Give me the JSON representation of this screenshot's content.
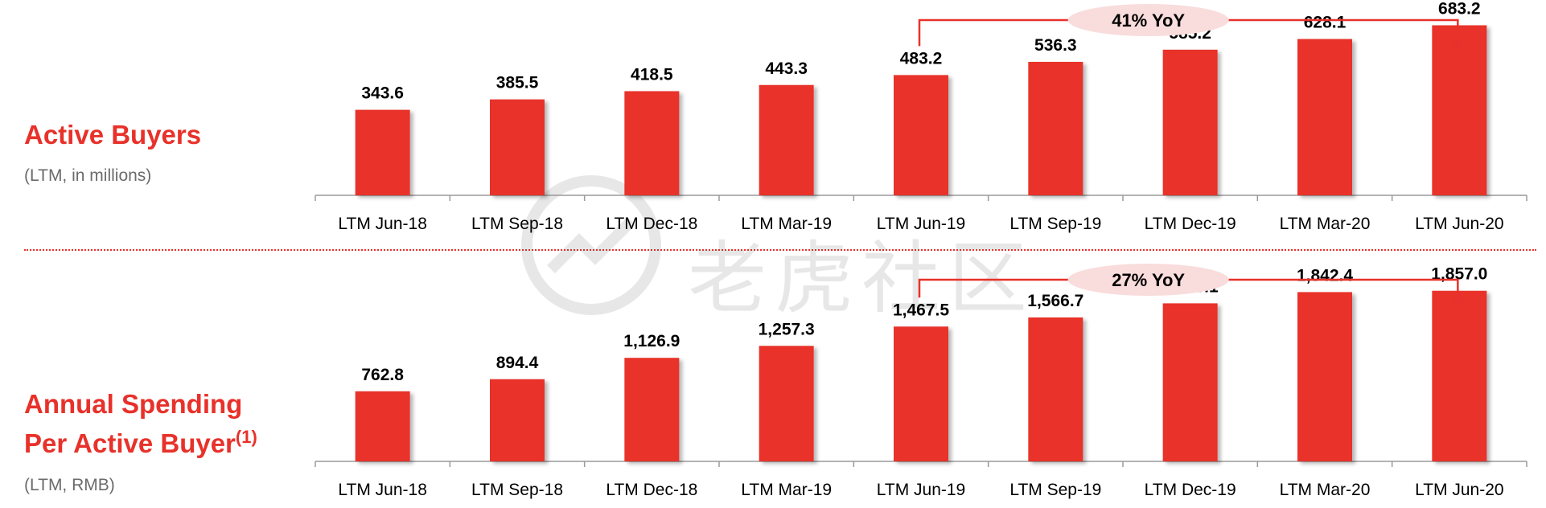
{
  "watermark_text": "老虎社区",
  "colors": {
    "accent": "#e8312a",
    "bar": "#e8312a",
    "text": "#000000",
    "subtitle": "#6b6b6b",
    "yoy_bubble": "#f9dcdc"
  },
  "panels": [
    {
      "title": "Active Buyers",
      "subtitle": "(LTM, in millions)"
    },
    {
      "title_line1": "Annual Spending",
      "title_line2": "Per Active Buyer",
      "title_footnote": "(1)",
      "subtitle": "(LTM, RMB)"
    }
  ],
  "chart_data": [
    {
      "type": "bar",
      "title": "Active Buyers",
      "subtitle": "(LTM, in millions)",
      "categories": [
        "LTM Jun-18",
        "LTM Sep-18",
        "LTM Dec-18",
        "LTM Mar-19",
        "LTM Jun-19",
        "LTM Sep-19",
        "LTM Dec-19",
        "LTM Mar-20",
        "LTM Jun-20"
      ],
      "values": [
        343.6,
        385.5,
        418.5,
        443.3,
        483.2,
        536.3,
        585.2,
        628.1,
        683.2
      ],
      "value_labels": [
        "343.6",
        "385.5",
        "418.5",
        "443.3",
        "483.2",
        "536.3",
        "585.2",
        "628.1",
        "683.2"
      ],
      "ylim": [
        0,
        700
      ],
      "grid": false,
      "annotation": {
        "text": "41% YoY",
        "from": "LTM Jun-19",
        "to": "LTM Jun-20"
      }
    },
    {
      "type": "bar",
      "title": "Annual Spending Per Active Buyer(1)",
      "subtitle": "(LTM, RMB)",
      "categories": [
        "LTM Jun-18",
        "LTM Sep-18",
        "LTM Dec-18",
        "LTM Mar-19",
        "LTM Jun-19",
        "LTM Sep-19",
        "LTM Dec-19",
        "LTM Mar-20",
        "LTM Jun-20"
      ],
      "values": [
        762.8,
        894.4,
        1126.9,
        1257.3,
        1467.5,
        1566.7,
        1720.1,
        1842.4,
        1857.0
      ],
      "value_labels": [
        "762.8",
        "894.4",
        "1,126.9",
        "1,257.3",
        "1,467.5",
        "1,566.7",
        "1,720.1",
        "1,842.4",
        "1,857.0"
      ],
      "ylim": [
        0,
        1900
      ],
      "grid": false,
      "annotation": {
        "text": "27% YoY",
        "from": "LTM Jun-19",
        "to": "LTM Jun-20"
      }
    }
  ]
}
